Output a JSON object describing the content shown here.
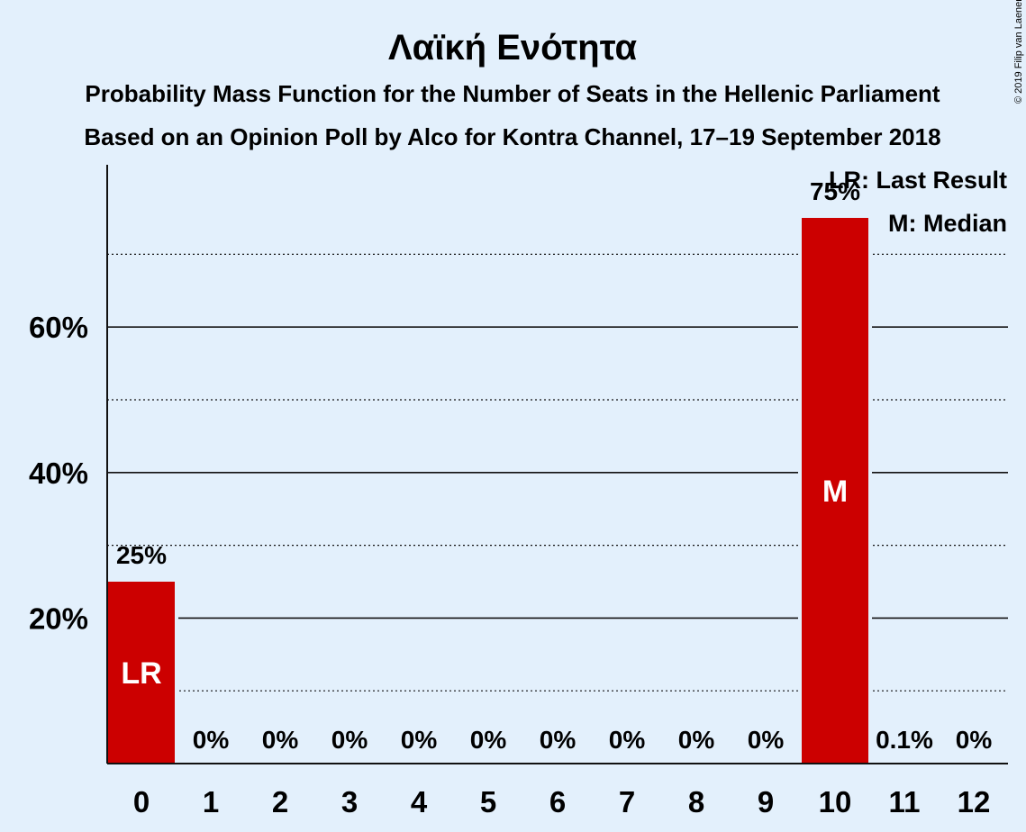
{
  "chart_data": {
    "type": "bar",
    "title": "Λαϊκή Ενότητα",
    "subtitle_lines": [
      "Probability Mass Function for the Number of Seats in the Hellenic Parliament",
      "Based on an Opinion Poll by Alco for Kontra Channel, 17–19 September 2018"
    ],
    "categories": [
      "0",
      "1",
      "2",
      "3",
      "4",
      "5",
      "6",
      "7",
      "8",
      "9",
      "10",
      "11",
      "12"
    ],
    "values": [
      25,
      0,
      0,
      0,
      0,
      0,
      0,
      0,
      0,
      0,
      75,
      0.1,
      0
    ],
    "value_labels": [
      "25%",
      "0%",
      "0%",
      "0%",
      "0%",
      "0%",
      "0%",
      "0%",
      "0%",
      "0%",
      "75%",
      "0.1%",
      "0%"
    ],
    "bar_marks": {
      "0": "LR",
      "10": "M"
    },
    "ylim": [
      0,
      82
    ],
    "yticks": [
      20,
      40,
      60
    ],
    "ytick_labels": [
      "20%",
      "40%",
      "60%"
    ],
    "minor_grid": [
      10,
      30,
      50,
      70
    ],
    "grid": true,
    "legend_position": "top-right",
    "legend": [
      "LR: Last Result",
      "M: Median"
    ],
    "copyright": "© 2019 Filip van Laenen",
    "colors": {
      "bar": "#cc0000",
      "background": "#e3f0fc",
      "text": "#111111"
    }
  }
}
